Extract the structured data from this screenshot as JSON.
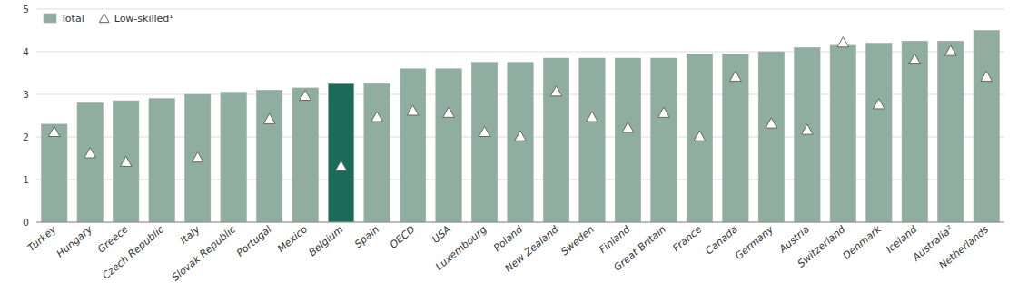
{
  "chart_data": {
    "type": "bar",
    "categories": [
      "Turkey",
      "Hungary",
      "Greece",
      "Czech Republic",
      "Italy",
      "Slovak Republic",
      "Portugal",
      "Mexico",
      "Belgium",
      "Spain",
      "OECD",
      "USA",
      "Luxembourg",
      "Poland",
      "New Zealand",
      "Sweden",
      "Finland",
      "Great Britain",
      "France",
      "Canada",
      "Germany",
      "Austria",
      "Switzerland",
      "Denmark",
      "Iceland",
      "Australia²",
      "Netherlands"
    ],
    "series": [
      {
        "name": "Total",
        "type": "bar",
        "color": "#8fada0",
        "colors": [
          "#8fada0",
          "#8fada0",
          "#8fada0",
          "#8fada0",
          "#8fada0",
          "#8fada0",
          "#8fada0",
          "#8fada0",
          "#1a6b5a",
          "#8fada0",
          "#8fada0",
          "#8fada0",
          "#8fada0",
          "#8fada0",
          "#8fada0",
          "#8fada0",
          "#8fada0",
          "#8fada0",
          "#8fada0",
          "#8fada0",
          "#8fada0",
          "#8fada0",
          "#8fada0",
          "#8fada0",
          "#8fada0",
          "#8fada0",
          "#8fada0"
        ],
        "values": [
          2.3,
          2.8,
          2.85,
          2.9,
          3.0,
          3.05,
          3.1,
          3.15,
          3.25,
          3.25,
          3.6,
          3.6,
          3.75,
          3.75,
          3.85,
          3.85,
          3.85,
          3.85,
          3.95,
          3.95,
          4.0,
          4.1,
          4.15,
          4.2,
          4.25,
          4.25,
          4.5
        ]
      },
      {
        "name": "Low-skilled¹",
        "type": "scatter",
        "marker": "triangle",
        "color": "#ffffff",
        "values": [
          2.1,
          1.6,
          1.4,
          null,
          1.5,
          null,
          2.4,
          2.95,
          1.3,
          2.45,
          2.6,
          2.55,
          2.1,
          2.0,
          3.05,
          2.45,
          2.2,
          2.55,
          2.0,
          3.4,
          2.3,
          2.15,
          4.2,
          2.75,
          3.8,
          4.0,
          3.4
        ]
      }
    ],
    "ylim": [
      0,
      5
    ],
    "yticks": [
      0,
      1,
      2,
      3,
      4,
      5
    ],
    "grid": true,
    "legend": "upper left"
  }
}
